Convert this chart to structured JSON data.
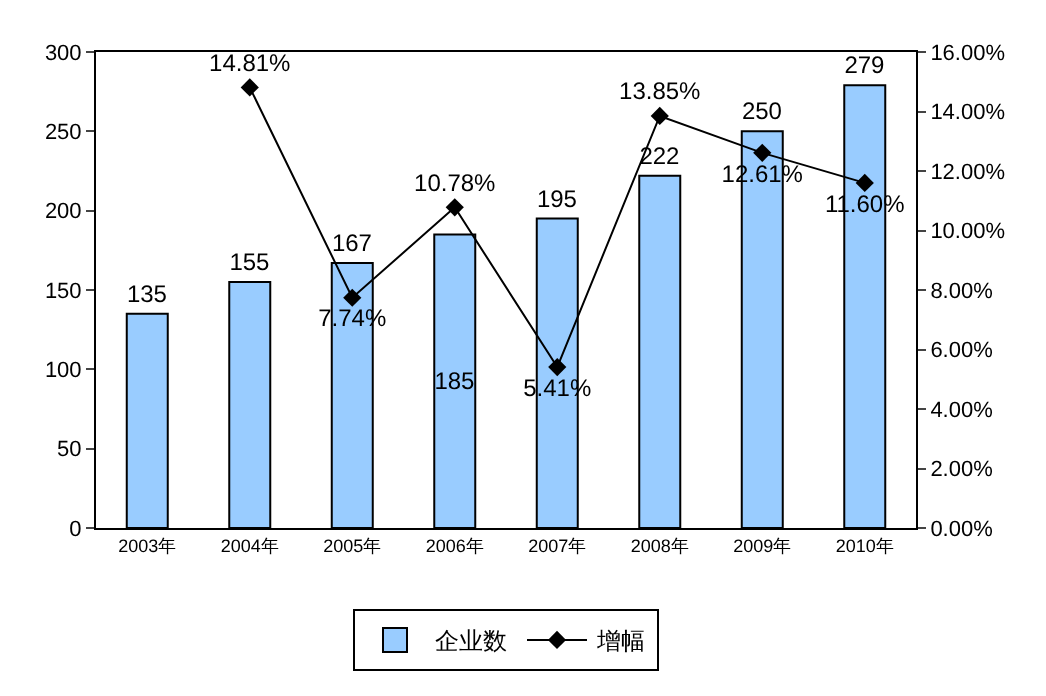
{
  "chart_data": {
    "type": "bar",
    "categories": [
      "2003年",
      "2004年",
      "2005年",
      "2006年",
      "2007年",
      "2008年",
      "2009年",
      "2010年"
    ],
    "series": [
      {
        "name": "企业数",
        "color": "#99ccff",
        "values": [
          135,
          155,
          167,
          185,
          195,
          222,
          250,
          279
        ]
      },
      {
        "name": "增幅",
        "type": "line",
        "axis": "y2",
        "color": "#000000",
        "values": [
          null,
          14.81,
          7.74,
          10.78,
          5.41,
          13.85,
          12.61,
          11.6
        ],
        "value_labels": [
          null,
          "14.81%",
          "7.74%",
          "10.78%",
          "5.41%",
          "13.85%",
          "12.61%",
          "11.60%"
        ]
      }
    ],
    "ylim": [
      0,
      300
    ],
    "yticks": [
      0,
      50,
      100,
      150,
      200,
      250,
      300
    ],
    "y2lim": [
      0,
      16
    ],
    "y2ticks": [
      {
        "value": 0,
        "label": "0.00%"
      },
      {
        "value": 2,
        "label": "2.00%"
      },
      {
        "value": 4,
        "label": "4.00%"
      },
      {
        "value": 6,
        "label": "6.00%"
      },
      {
        "value": 8,
        "label": "8.00%"
      },
      {
        "value": 10,
        "label": "10.00%"
      },
      {
        "value": 12,
        "label": "12.00%"
      },
      {
        "value": 14,
        "label": "14.00%"
      },
      {
        "value": 16,
        "label": "16.00%"
      }
    ],
    "data_labels": true,
    "grid": false,
    "legend": "bottom",
    "marker": "diamond",
    "line_style": "solid"
  }
}
